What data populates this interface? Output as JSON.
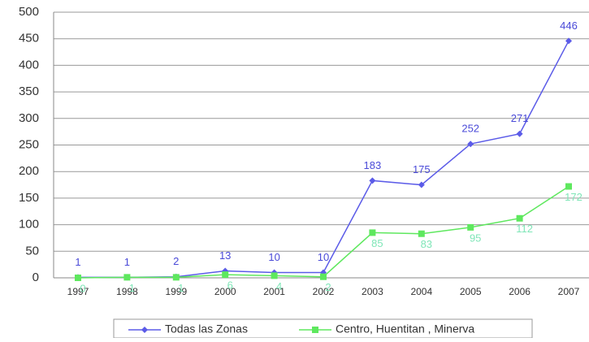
{
  "chart_data": {
    "type": "line",
    "categories": [
      "1997",
      "1998",
      "1999",
      "2000",
      "2001",
      "2002",
      "2003",
      "2004",
      "2005",
      "2006",
      "2007"
    ],
    "series": [
      {
        "name": "Todas las Zonas",
        "color": "#5b5be8",
        "label_color": "#4a4ad8",
        "marker": "diamond",
        "values": [
          1,
          1,
          2,
          13,
          10,
          10,
          183,
          175,
          252,
          271,
          446
        ]
      },
      {
        "name": "Centro, Huentitan , Minerva",
        "color": "#5ee85e",
        "label_color": "#80e6b8",
        "marker": "square",
        "values": [
          0,
          1,
          1,
          6,
          4,
          2,
          85,
          83,
          95,
          112,
          172
        ]
      }
    ],
    "ylim": [
      0,
      500
    ],
    "yticks": [
      0,
      50,
      100,
      150,
      200,
      250,
      300,
      350,
      400,
      450,
      500
    ],
    "grid": true,
    "legend": "bottom"
  }
}
